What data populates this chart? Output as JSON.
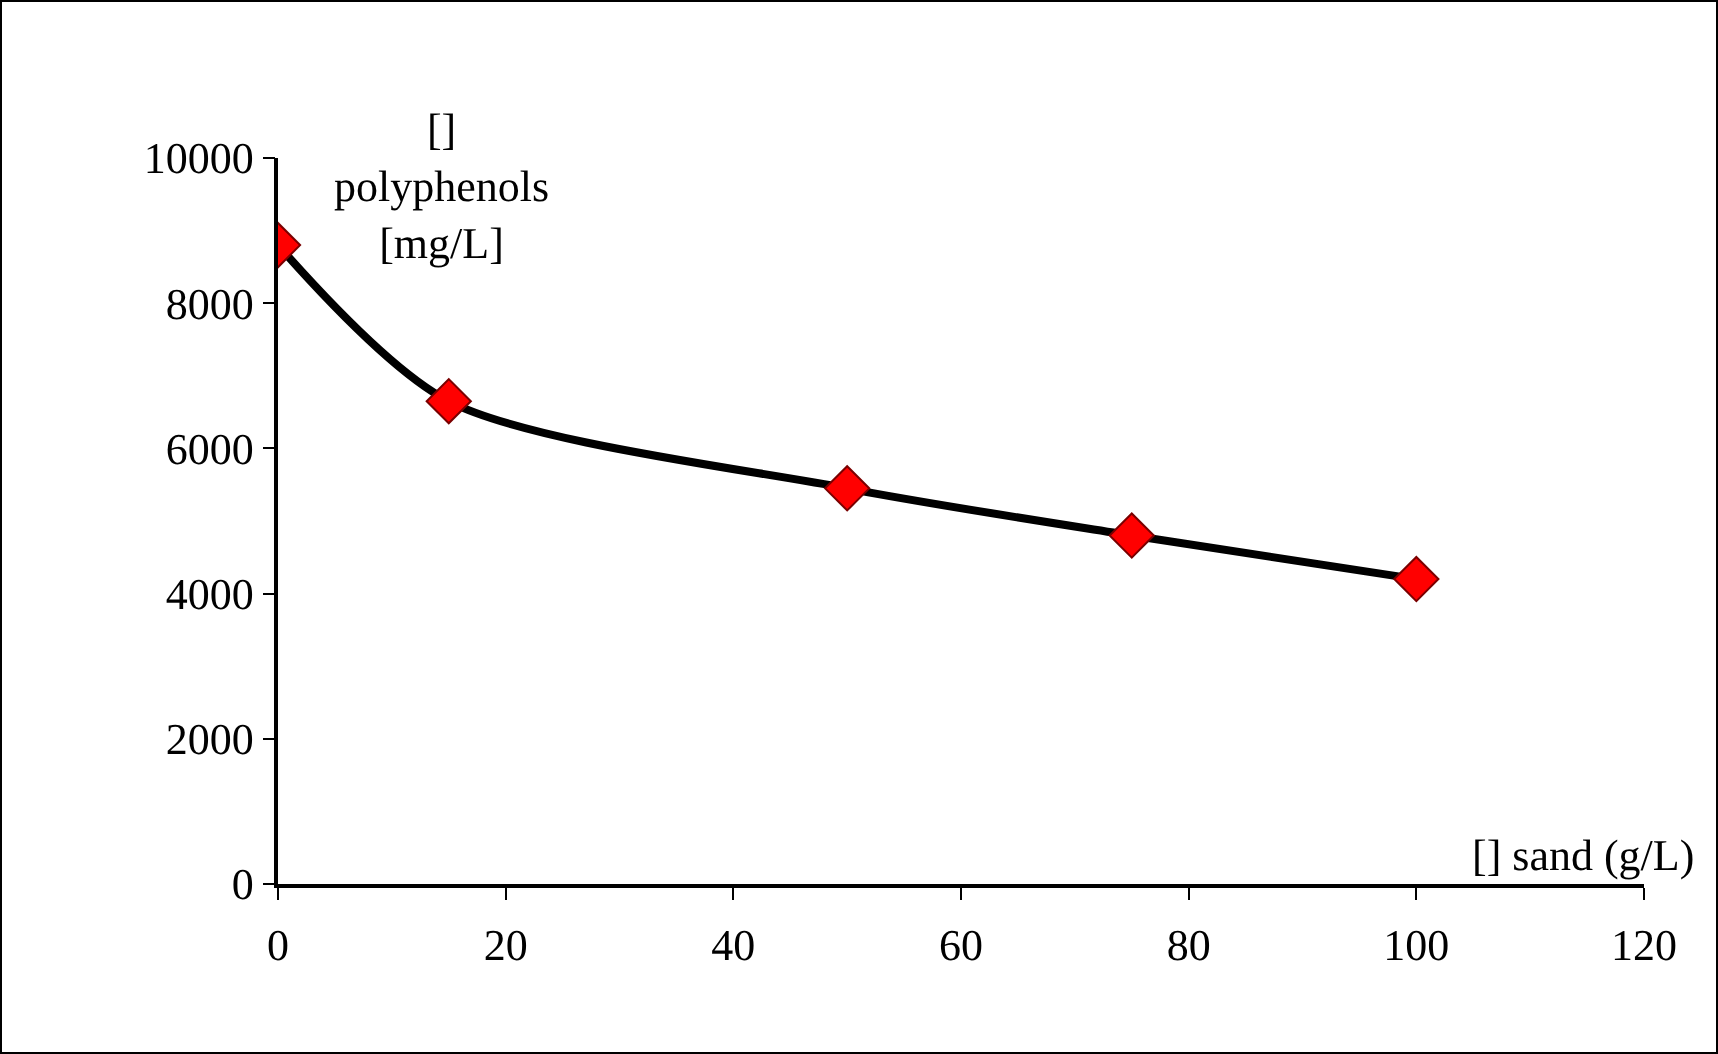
{
  "chart_data": {
    "type": "line",
    "xlabel": "[] sand (g/L)",
    "ylabel": "[]\npolyphenols\n[mg/L]",
    "x": [
      0,
      15,
      50,
      75,
      100
    ],
    "series": [
      {
        "color": "#000000",
        "colors": [
          "#ff0000",
          "#ff0000",
          "#ff0000",
          "#ff0000",
          "#ff0000"
        ],
        "values": [
          8800,
          6650,
          5450,
          4800,
          4200
        ]
      }
    ],
    "xlim": [
      0,
      120
    ],
    "xticks": [
      0,
      20,
      40,
      60,
      80,
      100,
      120
    ],
    "ylim": [
      0,
      10000
    ],
    "yticks": [
      0,
      2000,
      4000,
      6000,
      8000,
      10000
    ],
    "marker": "diamond",
    "line_style": "solid"
  }
}
